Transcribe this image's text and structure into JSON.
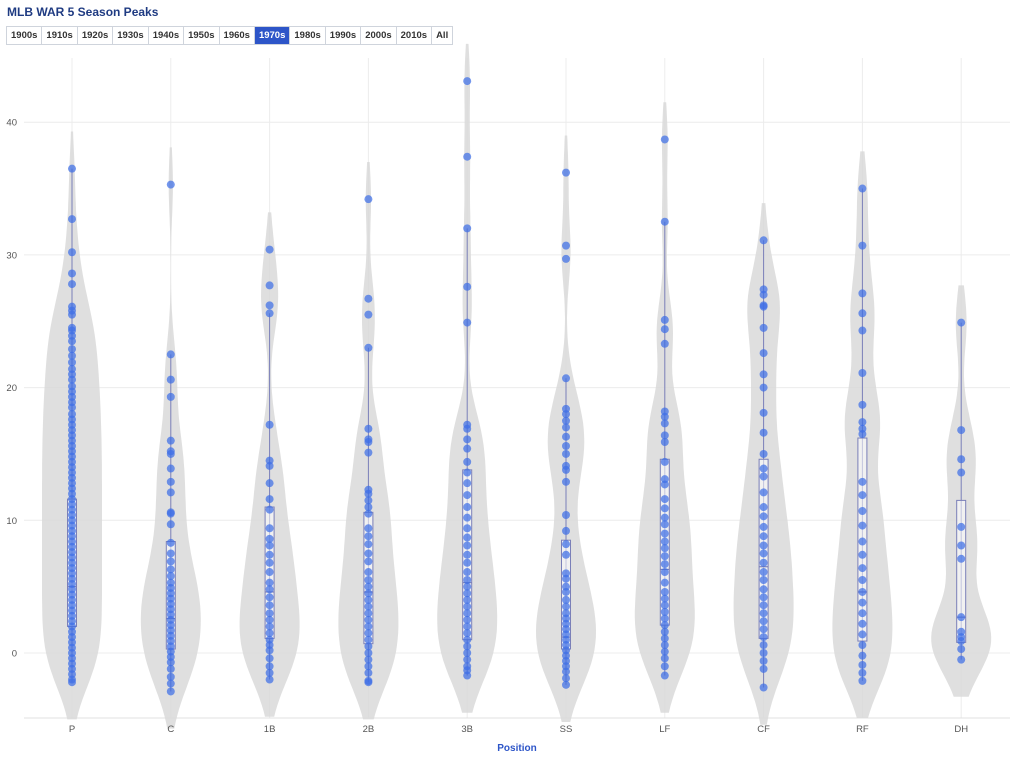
{
  "header": {
    "title": "MLB WAR 5 Season Peaks"
  },
  "decades": {
    "options": [
      "1900s",
      "1910s",
      "1920s",
      "1930s",
      "1940s",
      "1950s",
      "1960s",
      "1970s",
      "1980s",
      "1990s",
      "2000s",
      "2010s",
      "All"
    ],
    "selected": "1970s"
  },
  "colors": {
    "point": "#3f6fe6",
    "violin": "#d9d9d9",
    "box": "#7a7fb8",
    "accent": "#2d55c8"
  },
  "chart_data": {
    "type": "violin",
    "xlabel": "Position",
    "ylabel": "",
    "ylim": [
      -5,
      45
    ],
    "yticks": [
      0,
      10,
      20,
      30,
      40
    ],
    "grid": true,
    "categories": [
      "P",
      "C",
      "1B",
      "2B",
      "3B",
      "SS",
      "LF",
      "CF",
      "RF",
      "DH"
    ],
    "box": [
      {
        "q1": 2.0,
        "median": 5.0,
        "q3": 11.6,
        "lower": -2.2,
        "upper": 36.5
      },
      {
        "q1": 0.3,
        "median": 2.6,
        "q3": 8.4,
        "lower": -2.9,
        "upper": 22.5
      },
      {
        "q1": 1.1,
        "median": 4.6,
        "q3": 11.0,
        "lower": -2.0,
        "upper": 25.6
      },
      {
        "q1": 0.7,
        "median": 4.6,
        "q3": 10.6,
        "lower": -2.2,
        "upper": 23.0
      },
      {
        "q1": 1.0,
        "median": 5.3,
        "q3": 13.8,
        "lower": -1.7,
        "upper": 32.0
      },
      {
        "q1": 0.3,
        "median": 1.2,
        "q3": 8.5,
        "lower": -2.4,
        "upper": 20.7
      },
      {
        "q1": 2.1,
        "median": 6.3,
        "q3": 14.6,
        "lower": -1.7,
        "upper": 32.5
      },
      {
        "q1": 1.1,
        "median": 6.5,
        "q3": 14.6,
        "lower": -2.6,
        "upper": 31.1
      },
      {
        "q1": 0.9,
        "median": 4.6,
        "q3": 16.2,
        "lower": -2.1,
        "upper": 35.0
      },
      {
        "q1": 0.8,
        "median": 2.7,
        "q3": 11.5,
        "lower": -0.5,
        "upper": 24.9
      }
    ],
    "points": [
      [
        36.5,
        32.7,
        30.2,
        28.6,
        27.8,
        26.1,
        25.8,
        25.5,
        24.5,
        24.3,
        23.9,
        23.5,
        22.9,
        22.4,
        21.9,
        21.4,
        21.0,
        20.6,
        20.1,
        19.7,
        19.3,
        18.9,
        18.5,
        18.0,
        17.6,
        17.2,
        16.8,
        16.4,
        16.0,
        15.6,
        15.2,
        14.8,
        14.4,
        14.0,
        13.6,
        13.2,
        12.8,
        12.4,
        12.0,
        11.6,
        11.2,
        10.8,
        10.4,
        10.0,
        9.6,
        9.2,
        8.8,
        8.4,
        8.0,
        7.6,
        7.2,
        6.8,
        6.4,
        6.0,
        5.6,
        5.2,
        4.8,
        4.4,
        4.0,
        3.6,
        3.2,
        2.8,
        2.4,
        2.0,
        1.6,
        1.2,
        0.8,
        0.4,
        0.0,
        -0.4,
        -0.8,
        -1.2,
        -1.6,
        -2.0,
        -2.2
      ],
      [
        35.3,
        22.5,
        20.6,
        19.3,
        16.0,
        15.2,
        15.0,
        13.9,
        12.9,
        12.1,
        10.6,
        10.5,
        9.7,
        8.3,
        7.5,
        6.9,
        6.3,
        5.8,
        5.3,
        4.9,
        4.5,
        4.1,
        3.7,
        3.3,
        2.9,
        2.5,
        2.1,
        1.7,
        1.3,
        0.9,
        0.5,
        0.1,
        -0.3,
        -0.7,
        -1.2,
        -1.8,
        -2.3,
        -2.9
      ],
      [
        30.4,
        27.7,
        26.2,
        25.6,
        17.2,
        14.5,
        14.1,
        12.8,
        11.6,
        10.8,
        9.4,
        8.6,
        8.1,
        7.4,
        6.8,
        6.1,
        5.3,
        4.8,
        4.2,
        3.6,
        3.0,
        2.5,
        2.0,
        1.5,
        1.0,
        0.6,
        0.2,
        -0.4,
        -1.0,
        -1.5,
        -2.0
      ],
      [
        34.2,
        26.7,
        25.5,
        23.0,
        16.9,
        16.1,
        15.9,
        15.1,
        12.3,
        12.0,
        11.5,
        11.0,
        10.5,
        9.4,
        8.8,
        8.2,
        7.5,
        6.9,
        6.1,
        5.5,
        5.0,
        4.5,
        4.0,
        3.5,
        3.0,
        2.5,
        2.0,
        1.5,
        1.0,
        0.5,
        0.0,
        -0.5,
        -1.0,
        -1.5,
        -2.1,
        -2.2
      ],
      [
        43.1,
        37.4,
        32.0,
        27.6,
        24.9,
        17.2,
        16.9,
        16.1,
        15.4,
        14.4,
        13.6,
        12.8,
        11.9,
        11.0,
        10.2,
        9.4,
        8.7,
        8.1,
        7.4,
        6.8,
        6.1,
        5.5,
        5.0,
        4.5,
        4.0,
        3.5,
        3.0,
        2.5,
        2.0,
        1.5,
        1.0,
        0.5,
        0.0,
        -0.5,
        -1.0,
        -1.3,
        -1.7
      ],
      [
        36.2,
        30.7,
        29.7,
        20.7,
        18.4,
        18.0,
        17.5,
        17.0,
        16.3,
        15.6,
        15.0,
        14.1,
        13.8,
        12.9,
        10.4,
        9.2,
        8.2,
        7.4,
        6.0,
        5.6,
        5.0,
        4.6,
        4.0,
        3.5,
        3.0,
        2.6,
        2.2,
        1.8,
        1.4,
        1.0,
        0.6,
        0.2,
        -0.2,
        -0.6,
        -1.0,
        -1.4,
        -1.9,
        -2.4
      ],
      [
        38.7,
        32.5,
        25.1,
        24.4,
        23.3,
        18.2,
        17.8,
        17.3,
        16.4,
        15.9,
        14.4,
        13.1,
        12.7,
        11.6,
        10.9,
        10.2,
        9.7,
        9.0,
        8.4,
        7.9,
        7.3,
        6.7,
        6.1,
        5.3,
        4.6,
        4.1,
        3.6,
        3.1,
        2.6,
        2.1,
        1.6,
        1.1,
        0.6,
        0.1,
        -0.4,
        -1.0,
        -1.7
      ],
      [
        31.1,
        27.4,
        27.0,
        26.2,
        26.1,
        24.5,
        22.6,
        21.0,
        20.0,
        18.1,
        16.6,
        15.0,
        13.9,
        13.3,
        12.1,
        11.0,
        10.3,
        9.5,
        8.8,
        8.1,
        7.5,
        6.8,
        6.1,
        5.5,
        4.8,
        4.2,
        3.6,
        3.0,
        2.4,
        1.8,
        1.2,
        0.6,
        0.0,
        -0.6,
        -1.2,
        -2.6
      ],
      [
        35.0,
        30.7,
        27.1,
        25.6,
        24.3,
        21.1,
        18.7,
        17.4,
        16.9,
        16.5,
        12.9,
        11.9,
        10.7,
        9.6,
        8.4,
        7.4,
        6.4,
        5.5,
        4.6,
        3.8,
        3.0,
        2.2,
        1.4,
        0.6,
        -0.2,
        -0.9,
        -1.5,
        -2.1
      ],
      [
        24.9,
        16.8,
        14.6,
        13.6,
        9.5,
        8.1,
        7.1,
        2.7,
        1.6,
        1.2,
        0.9,
        0.3,
        -0.5
      ]
    ]
  }
}
